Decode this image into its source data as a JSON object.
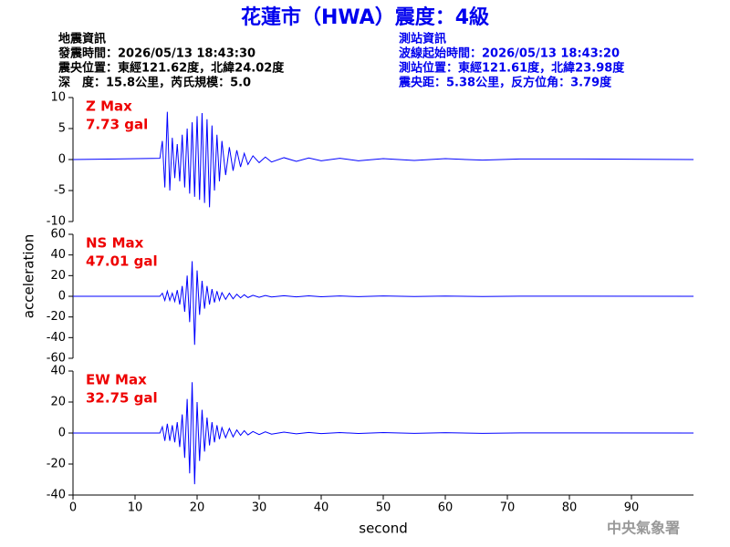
{
  "header": {
    "title": "花蓮市（HWA）震度：4級",
    "info_left": [
      "地震資訊",
      "發震時間：2026/05/13 18:43:30",
      "震央位置：東經121.62度，北緯24.02度",
      "深　度：15.8公里，芮氏規模：5.0"
    ],
    "info_right": [
      "測站資訊",
      "波線起始時間：2026/05/13 18:43:20",
      "測站位置：東經121.61度，北緯23.98度",
      "震央距：5.38公里，反方位角：3.79度"
    ]
  },
  "ylabel": "acceleration",
  "footer": "中央氣象署",
  "chart_data": [
    {
      "type": "line",
      "label": "Z Max",
      "max_label": "7.73 gal",
      "label_color": "#ee0000",
      "x": [
        0,
        14,
        14.4,
        14.8,
        15.2,
        15.6,
        16.0,
        16.4,
        16.8,
        17.2,
        17.6,
        18.0,
        18.4,
        18.8,
        19.2,
        19.6,
        20.0,
        20.4,
        20.8,
        21.2,
        21.6,
        22.0,
        22.4,
        22.8,
        23.2,
        23.6,
        24.0,
        24.6,
        25.2,
        25.8,
        26.4,
        27.0,
        27.6,
        28.2,
        29,
        30,
        31,
        32,
        34,
        36,
        38,
        40,
        43,
        46,
        50,
        55,
        60,
        66,
        72,
        81,
        100
      ],
      "series": [
        {
          "color": "#0000ff",
          "values": [
            0,
            0.2,
            3,
            -4.5,
            7.7,
            -5,
            3.5,
            -3,
            2.5,
            -3.5,
            4,
            -4.5,
            5,
            -5.5,
            6,
            -6,
            7,
            -6.5,
            7.5,
            -7,
            6.5,
            -7.7,
            5.5,
            -5,
            4,
            -3.5,
            3,
            -2.5,
            2,
            -1.8,
            1.5,
            -1.2,
            1,
            -0.8,
            0.6,
            -0.5,
            0.4,
            -0.4,
            0.3,
            -0.3,
            0.25,
            -0.2,
            0.2,
            -0.2,
            0.15,
            -0.15,
            0.15,
            -0.1,
            0.1,
            0.1,
            0
          ]
        }
      ],
      "xlim": [
        0,
        100
      ],
      "ylim": [
        -10,
        10
      ],
      "yticks": [
        -10,
        -5,
        0,
        5,
        10
      ]
    },
    {
      "type": "line",
      "label": "NS Max",
      "max_label": "47.01 gal",
      "label_color": "#ee0000",
      "x": [
        0,
        14,
        14.4,
        14.8,
        15.2,
        15.6,
        16.0,
        16.4,
        16.8,
        17.2,
        17.6,
        18.0,
        18.4,
        18.8,
        19.2,
        19.6,
        20.0,
        20.4,
        20.8,
        21.2,
        21.6,
        22.0,
        22.4,
        22.8,
        23.2,
        23.6,
        24.0,
        24.6,
        25.2,
        25.8,
        26.4,
        27.0,
        27.6,
        28.2,
        29,
        30,
        31,
        32,
        34,
        36,
        38,
        40,
        43,
        46,
        50,
        55,
        60,
        66,
        72,
        81,
        100
      ],
      "series": [
        {
          "color": "#0000ff",
          "values": [
            0,
            0,
            3,
            -4,
            5,
            -4,
            3,
            -5,
            6,
            -8,
            10,
            -15,
            20,
            -25,
            34,
            -47,
            25,
            -18,
            15,
            -12,
            10,
            -8,
            7,
            -6,
            5,
            -4,
            3.5,
            -3,
            3,
            -2.5,
            2,
            -1.5,
            1.5,
            -1.2,
            1,
            -1,
            0.8,
            -0.7,
            0.6,
            -0.5,
            0.4,
            -0.4,
            0.3,
            -0.3,
            0.3,
            -0.2,
            0.2,
            -0.2,
            0.1,
            0.1,
            0
          ]
        }
      ],
      "xlim": [
        0,
        100
      ],
      "ylim": [
        -60,
        60
      ],
      "yticks": [
        -60,
        -40,
        -20,
        0,
        20,
        40,
        60
      ]
    },
    {
      "type": "line",
      "label": "EW Max",
      "max_label": "32.75 gal",
      "label_color": "#ee0000",
      "xlabel": "second",
      "x": [
        0,
        14,
        14.4,
        14.8,
        15.2,
        15.6,
        16.0,
        16.4,
        16.8,
        17.2,
        17.6,
        18.0,
        18.4,
        18.8,
        19.2,
        19.6,
        20.0,
        20.4,
        20.8,
        21.2,
        21.6,
        22.0,
        22.4,
        22.8,
        23.2,
        23.6,
        24.0,
        24.6,
        25.2,
        25.8,
        26.4,
        27.0,
        27.6,
        28.2,
        29,
        30,
        31,
        32,
        34,
        36,
        38,
        40,
        43,
        46,
        50,
        55,
        60,
        66,
        72,
        81,
        100
      ],
      "series": [
        {
          "color": "#0000ff",
          "values": [
            0,
            0,
            4,
            -5,
            6,
            -5,
            5,
            -6,
            7,
            -9,
            12,
            -16,
            22,
            -26,
            32.75,
            -33,
            20,
            -18,
            15,
            -12,
            10,
            -8,
            7,
            -6,
            5,
            -4,
            3.5,
            -3,
            3,
            -2.5,
            2,
            -1.5,
            1.5,
            -1.2,
            1,
            -1,
            0.8,
            -0.7,
            0.6,
            -0.5,
            0.4,
            -0.4,
            0.3,
            -0.3,
            0.3,
            -0.2,
            0.2,
            -0.2,
            0.1,
            0.1,
            0
          ]
        }
      ],
      "xlim": [
        0,
        100
      ],
      "ylim": [
        -40,
        40
      ],
      "yticks": [
        -40,
        -20,
        0,
        20,
        40
      ],
      "xticks": [
        0,
        10,
        20,
        30,
        40,
        50,
        60,
        70,
        80,
        90
      ]
    }
  ]
}
